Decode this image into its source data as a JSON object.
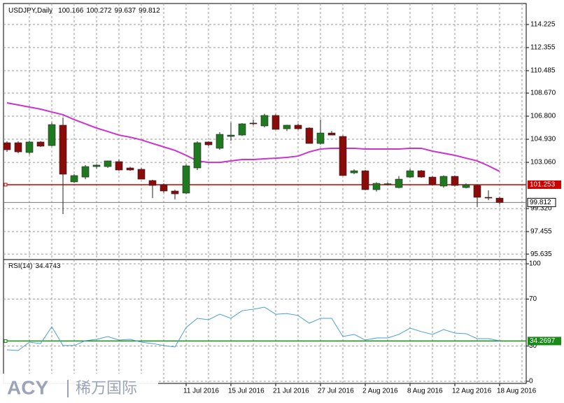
{
  "chart_data": {
    "type": "candlestick",
    "title": "USDJPY,Daily",
    "categories": [
      null,
      null,
      null,
      null,
      null,
      null,
      null,
      null,
      null,
      null,
      null,
      null,
      null,
      null,
      null,
      null,
      "11 Jul 2016",
      null,
      null,
      null,
      "15 Jul 2016",
      null,
      null,
      null,
      "21 Jul 2016",
      null,
      null,
      null,
      "27 Jul 2016",
      null,
      null,
      null,
      "2 Aug 2016",
      null,
      null,
      null,
      "8 Aug 2016",
      null,
      null,
      null,
      "12 Aug 2016",
      null,
      null,
      null,
      "18 Aug 2016"
    ],
    "open": [
      104.65,
      104.65,
      103.86,
      104.71,
      104.42,
      106.07,
      101.48,
      101.87,
      102.72,
      102.72,
      103.12,
      102.61,
      102.5,
      101.59,
      101.25,
      100.74,
      100.57,
      102.61,
      104.71,
      104.2,
      105.16,
      105.27,
      106.24,
      106.01,
      106.86,
      105.78,
      106.07,
      105.84,
      104.59,
      105.44,
      105.16,
      102.21,
      102.38,
      100.85,
      101.31,
      101.02,
      101.87,
      102.38,
      101.87,
      101.14,
      101.93,
      101.02,
      101.19,
      100.23,
      100.166
    ],
    "high": [
      104.76,
      104.76,
      104.8,
      104.76,
      106.3,
      106.69,
      102.1,
      102.84,
      102.9,
      103.2,
      103.3,
      102.7,
      102.61,
      101.65,
      101.36,
      100.85,
      102.9,
      104.76,
      104.76,
      105.5,
      106.29,
      106.24,
      106.52,
      107.0,
      106.95,
      106.1,
      106.2,
      105.9,
      106.52,
      105.6,
      105.25,
      102.5,
      102.45,
      101.45,
      101.45,
      101.95,
      102.55,
      102.45,
      101.95,
      102.0,
      102.0,
      101.36,
      101.25,
      100.8,
      100.272
    ],
    "low": [
      103.91,
      103.8,
      103.7,
      104.3,
      104.37,
      98.87,
      101.4,
      101.7,
      102.55,
      102.61,
      102.38,
      102.38,
      101.7,
      100.17,
      100.6,
      100.06,
      100.51,
      102.44,
      104.37,
      104.08,
      104.8,
      105.2,
      106.07,
      105.9,
      105.73,
      105.6,
      105.7,
      104.59,
      104.5,
      105.27,
      101.99,
      102.1,
      100.8,
      100.7,
      101.2,
      100.95,
      101.8,
      101.82,
      101.19,
      101.0,
      101.1,
      100.95,
      99.44,
      100.0,
      99.637
    ],
    "close": [
      104.08,
      103.91,
      104.71,
      104.37,
      106.12,
      102.1,
      101.99,
      102.72,
      102.84,
      103.18,
      102.44,
      102.44,
      101.7,
      101.19,
      100.74,
      100.51,
      102.78,
      104.65,
      104.48,
      105.33,
      105.27,
      106.18,
      106.18,
      106.86,
      105.73,
      106.07,
      105.78,
      104.59,
      105.44,
      105.27,
      101.99,
      102.38,
      100.85,
      101.36,
      101.33,
      101.7,
      102.38,
      101.87,
      101.25,
      101.93,
      101.19,
      101.25,
      100.23,
      100.17,
      99.812
    ],
    "up_color": "#1f7a1f",
    "down_color": "#8b0a0a",
    "moving_average": {
      "color": "#cc33cc",
      "values": [
        107.88,
        107.71,
        107.54,
        107.37,
        107.14,
        106.92,
        106.52,
        106.18,
        105.84,
        105.56,
        105.27,
        105.1,
        104.88,
        104.59,
        104.31,
        104.03,
        103.63,
        103.18,
        103.06,
        103.06,
        103.18,
        103.29,
        103.29,
        103.35,
        103.4,
        103.46,
        103.57,
        103.91,
        104.14,
        104.2,
        104.2,
        104.2,
        104.14,
        104.14,
        104.14,
        104.14,
        104.2,
        104.2,
        103.97,
        103.8,
        103.63,
        103.4,
        103.18,
        102.78,
        102.33
      ]
    },
    "ylim": [
      95.245,
      115.925
    ],
    "yticks": [
      {
        "value": 95.635,
        "label": "95.635"
      },
      {
        "value": 97.455,
        "label": "97.455"
      },
      {
        "value": 99.32,
        "label": "99.320"
      },
      {
        "value": 103.06,
        "label": "103.060"
      },
      {
        "value": 104.93,
        "label": "104.930"
      },
      {
        "value": 106.8,
        "label": "106.800"
      },
      {
        "value": 108.67,
        "label": "108.670"
      },
      {
        "value": 110.485,
        "label": "110.485"
      },
      {
        "value": 112.355,
        "label": "112.355"
      },
      {
        "value": 114.225,
        "label": "114.225"
      }
    ],
    "grid": true,
    "level_line": {
      "value": 101.253,
      "color": "#cc0000"
    },
    "rsi": {
      "name": "RSI(14)",
      "color": "#4a9fd5",
      "values": [
        26.8,
        26.2,
        33.3,
        32.1,
        46.4,
        30.4,
        30.4,
        34.5,
        35.7,
        38.1,
        35.1,
        35.7,
        33.3,
        32.1,
        30.4,
        29.2,
        45.8,
        53.6,
        52.4,
        57.1,
        53.6,
        60.1,
        61.3,
        63.1,
        57.1,
        57.7,
        56.0,
        49.4,
        53.6,
        53.6,
        38.1,
        39.9,
        35.1,
        36.9,
        36.9,
        39.9,
        45.2,
        42.3,
        39.9,
        44.0,
        41.1,
        40.5,
        36.3,
        36.3,
        34.4743
      ],
      "ylim": [
        -1.8,
        103
      ],
      "yticks": [
        0,
        30,
        70,
        100
      ],
      "level": {
        "value": 34.2697,
        "color": "#1a8a1a"
      }
    }
  },
  "watermark": {
    "brand": "ACY",
    "name": "稀万国际"
  }
}
